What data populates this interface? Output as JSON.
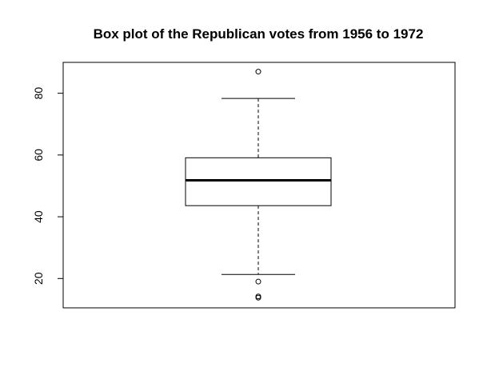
{
  "chart_data": {
    "type": "box",
    "title": "Box plot of the Republican votes from 1956 to 1972",
    "xlabel": "",
    "ylabel": "",
    "ylim": [
      10.5,
      90
    ],
    "yticks": [
      20,
      40,
      60,
      80
    ],
    "grid": false,
    "box": {
      "whisker_low": 21.3,
      "q1": 43.6,
      "median": 51.8,
      "q3": 59.1,
      "whisker_high": 78.3
    },
    "outliers": [
      87.0,
      19.0,
      14.2,
      13.8
    ]
  }
}
